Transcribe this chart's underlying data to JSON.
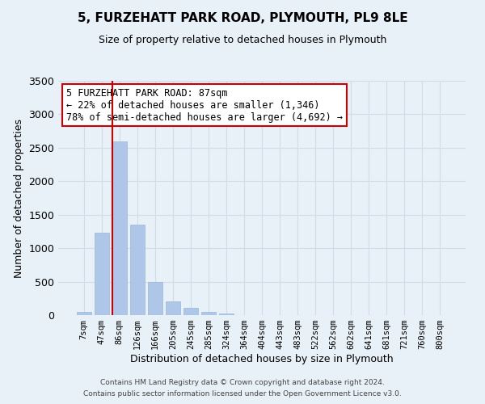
{
  "title": "5, FURZEHATT PARK ROAD, PLYMOUTH, PL9 8LE",
  "subtitle": "Size of property relative to detached houses in Plymouth",
  "xlabel": "Distribution of detached houses by size in Plymouth",
  "ylabel": "Number of detached properties",
  "bar_labels": [
    "7sqm",
    "47sqm",
    "86sqm",
    "126sqm",
    "166sqm",
    "205sqm",
    "245sqm",
    "285sqm",
    "324sqm",
    "364sqm",
    "404sqm",
    "443sqm",
    "483sqm",
    "522sqm",
    "562sqm",
    "602sqm",
    "641sqm",
    "681sqm",
    "721sqm",
    "760sqm",
    "800sqm"
  ],
  "bar_values": [
    50,
    1230,
    2600,
    1350,
    500,
    200,
    110,
    50,
    30,
    0,
    0,
    0,
    0,
    0,
    0,
    0,
    0,
    0,
    0,
    0,
    0
  ],
  "bar_color": "#aec6e8",
  "bar_edge_color": "#9ab8d8",
  "property_line_color": "#cc0000",
  "annotation_text": "5 FURZEHATT PARK ROAD: 87sqm\n← 22% of detached houses are smaller (1,346)\n78% of semi-detached houses are larger (4,692) →",
  "annotation_box_color": "#ffffff",
  "annotation_box_edge_color": "#cc0000",
  "ylim": [
    0,
    3500
  ],
  "yticks": [
    0,
    500,
    1000,
    1500,
    2000,
    2500,
    3000,
    3500
  ],
  "grid_color": "#d0dce8",
  "background_color": "#e8f0f8",
  "footer_line1": "Contains HM Land Registry data © Crown copyright and database right 2024.",
  "footer_line2": "Contains public sector information licensed under the Open Government Licence v3.0."
}
